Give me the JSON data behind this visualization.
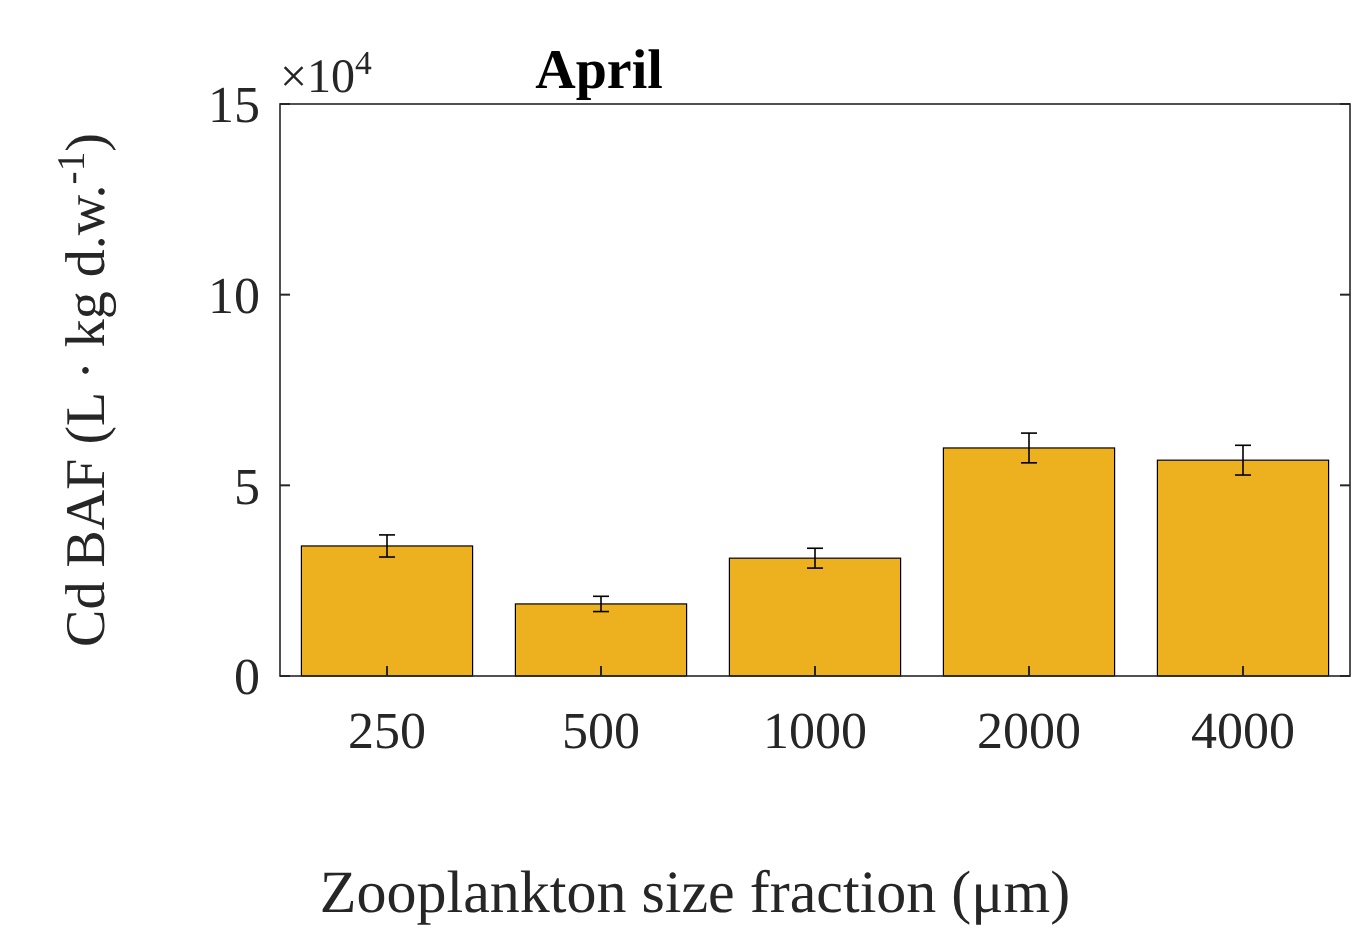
{
  "chart_data": {
    "type": "bar",
    "title": "April",
    "xlabel": "Zooplankton size fraction (μm)",
    "ylabel": "Cd BAF (L · kg d.w.$^{-1}$)",
    "categories": [
      "250",
      "500",
      "1000",
      "2000",
      "4000"
    ],
    "values": [
      3.41,
      1.89,
      3.09,
      5.98,
      5.66
    ],
    "errors": [
      0.29,
      0.2,
      0.26,
      0.39,
      0.39
    ],
    "color": "#edb120",
    "ylim": [
      0,
      15
    ],
    "yticks": [
      0,
      5,
      10,
      15
    ],
    "annotations": [
      "×10$^{4}$"
    ],
    "grid": false
  }
}
